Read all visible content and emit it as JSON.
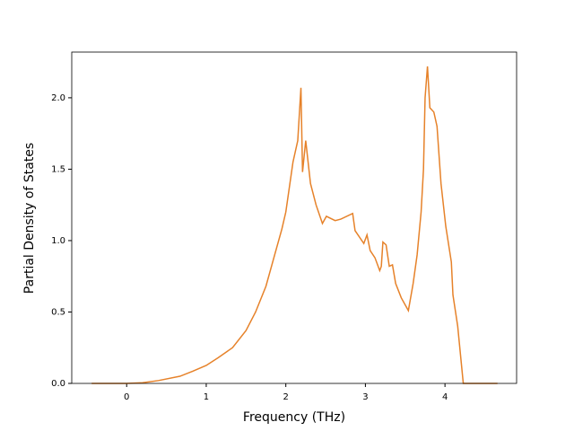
{
  "chart_data": {
    "type": "line",
    "x_label": "Frequency (THz)",
    "y_label": "Partial Density of States",
    "x": [
      -0.44,
      0,
      0.2,
      0.4,
      0.67,
      0.83,
      1.0,
      1.15,
      1.33,
      1.5,
      1.62,
      1.75,
      1.86,
      1.95,
      2.0,
      2.09,
      2.15,
      2.19,
      2.21,
      2.25,
      2.31,
      2.38,
      2.46,
      2.51,
      2.62,
      2.69,
      2.84,
      2.87,
      2.98,
      3.02,
      3.06,
      3.12,
      3.18,
      3.2,
      3.22,
      3.26,
      3.3,
      3.34,
      3.38,
      3.45,
      3.51,
      3.54,
      3.6,
      3.65,
      3.7,
      3.73,
      3.75,
      3.78,
      3.81,
      3.86,
      3.9,
      3.95,
      4.01,
      4.08,
      4.1,
      4.16,
      4.23,
      4.66
    ],
    "series": [
      {
        "color": "#e6822a",
        "values": [
          0,
          0,
          0.005,
          0.02,
          0.05,
          0.085,
          0.126,
          0.18,
          0.25,
          0.37,
          0.5,
          0.68,
          0.9,
          1.08,
          1.2,
          1.55,
          1.7,
          2.07,
          1.48,
          1.7,
          1.4,
          1.25,
          1.12,
          1.17,
          1.14,
          1.15,
          1.19,
          1.07,
          0.98,
          1.04,
          0.93,
          0.88,
          0.79,
          0.82,
          0.99,
          0.97,
          0.82,
          0.83,
          0.7,
          0.6,
          0.54,
          0.51,
          0.7,
          0.9,
          1.2,
          1.5,
          2.0,
          2.22,
          1.93,
          1.9,
          1.8,
          1.4,
          1.1,
          0.85,
          0.62,
          0.4,
          0,
          0
        ]
      }
    ],
    "xlim": [
      -0.69,
      4.9
    ],
    "ylim": [
      0,
      2.32
    ],
    "xticks": [
      0,
      1,
      2,
      3,
      4
    ],
    "yticks": [
      {
        "value": 0,
        "label": "0.0"
      },
      {
        "value": 0.5,
        "label": "0.5"
      },
      {
        "value": 1,
        "label": "1.0"
      },
      {
        "value": 1.5,
        "label": "1.5"
      },
      {
        "value": 2,
        "label": "2.0"
      }
    ]
  }
}
